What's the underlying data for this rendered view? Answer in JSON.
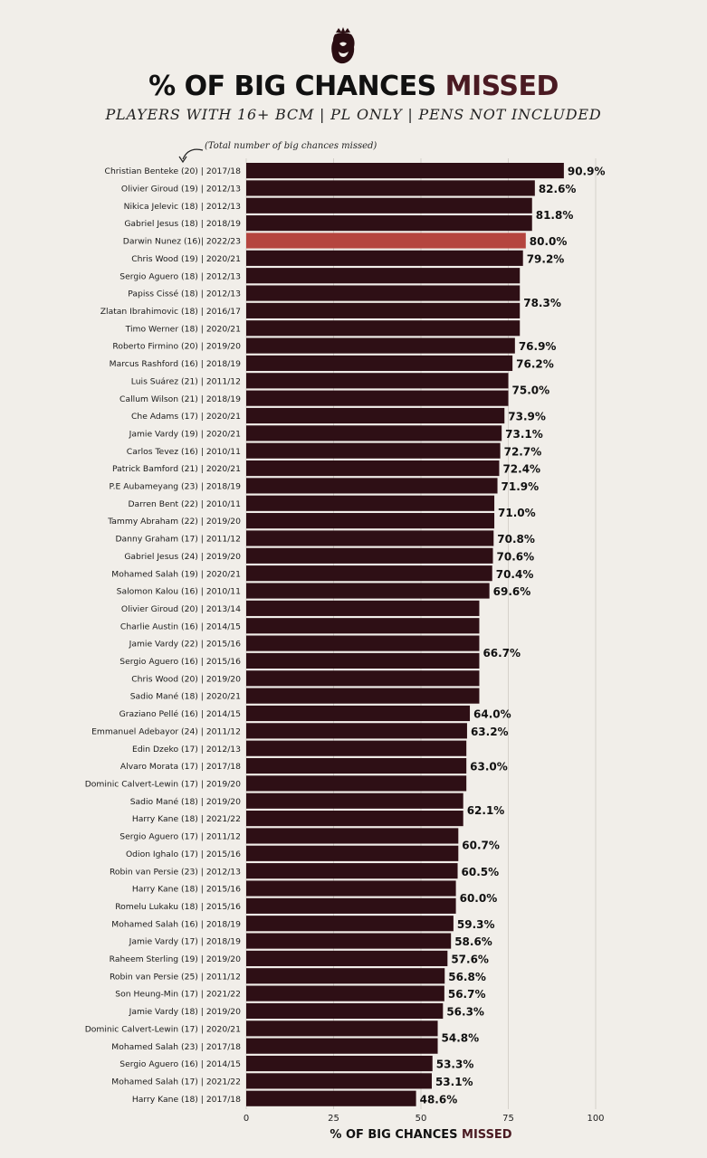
{
  "header": {
    "logo_icon": "premier-league-lion-icon",
    "title_main": "% OF BIG CHANCES ",
    "title_accent": "MISSED",
    "subtitle": "PLAYERS WITH 16+ BCM  |  PL ONLY | PENS NOT INCLUDED",
    "annotation": "(Total number of big chances missed)"
  },
  "colors": {
    "bar": "#2e0f15",
    "highlight": "#b5453f",
    "accent_text": "#4a1a22",
    "background": "#f1eee9"
  },
  "chart_data": {
    "type": "bar",
    "orientation": "horizontal",
    "xlabel_main": "% OF BIG CHANCES ",
    "xlabel_accent": "MISSED",
    "xlim": [
      0,
      100
    ],
    "xticks": [
      "0",
      "25",
      "50",
      "75",
      "100"
    ],
    "highlight_category": "Darwin Nunez (16)| 2022/23",
    "categories": [
      "Christian Benteke (20) | 2017/18",
      "Olivier Giroud (19) | 2012/13",
      "Nikica Jelevic (18) | 2012/13",
      "Gabriel Jesus (18) | 2018/19",
      "Darwin Nunez (16)| 2022/23",
      "Chris Wood (19) | 2020/21",
      "Sergio Aguero (18) | 2012/13",
      "Papiss Cissé (18) | 2012/13",
      "Zlatan Ibrahimovic (18) | 2016/17",
      "Timo Werner (18) | 2020/21",
      "Roberto Firmino (20) | 2019/20",
      "Marcus Rashford (16) | 2018/19",
      "Luis Suárez (21) | 2011/12",
      "Callum Wilson (21) | 2018/19",
      "Che Adams (17) | 2020/21",
      "Jamie Vardy (19) | 2020/21",
      "Carlos Tevez (16) | 2010/11",
      "Patrick Bamford (21) | 2020/21",
      "P.E Aubameyang (23) | 2018/19",
      "Darren Bent (22) | 2010/11",
      "Tammy Abraham (22) | 2019/20",
      "Danny Graham (17) | 2011/12",
      "Gabriel Jesus (24) | 2019/20",
      "Mohamed Salah (19) | 2020/21",
      "Salomon Kalou (16) | 2010/11",
      "Olivier Giroud (20) | 2013/14",
      "Charlie Austin (16) | 2014/15",
      "Jamie Vardy (22) | 2015/16",
      "Sergio Aguero (16) | 2015/16",
      "Chris Wood (20) | 2019/20",
      "Sadio Mané (18) | 2020/21",
      "Graziano Pellé (16) | 2014/15",
      "Emmanuel Adebayor (24) | 2011/12",
      "Edin Dzeko (17) | 2012/13",
      "Alvaro Morata (17) | 2017/18",
      "Dominic Calvert-Lewin (17) | 2019/20",
      "Sadio Mané (18) | 2019/20",
      "Harry Kane (18) | 2021/22",
      "Sergio Aguero (17) | 2011/12",
      "Odion Ighalo (17) | 2015/16",
      "Robin van Persie (23) | 2012/13",
      "Harry Kane (18) | 2015/16",
      "Romelu Lukaku (18) | 2015/16",
      "Mohamed Salah (16) | 2018/19",
      "Jamie Vardy (17) | 2018/19",
      "Raheem Sterling (19) | 2019/20",
      "Robin van Persie (25) | 2011/12",
      "Son Heung-Min (17) | 2021/22",
      "Jamie Vardy (18) | 2019/20",
      "Dominic Calvert-Lewin (17) | 2020/21",
      "Mohamed Salah (23) | 2017/18",
      "Sergio Aguero (16) | 2014/15",
      "Mohamed Salah (17) | 2021/22",
      "Harry Kane (18) | 2017/18"
    ],
    "values": [
      90.9,
      82.6,
      81.8,
      81.8,
      80.0,
      79.2,
      78.3,
      78.3,
      78.3,
      78.3,
      76.9,
      76.2,
      75.0,
      75.0,
      73.9,
      73.1,
      72.7,
      72.4,
      71.9,
      71.0,
      71.0,
      70.8,
      70.6,
      70.4,
      69.6,
      66.7,
      66.7,
      66.7,
      66.7,
      66.7,
      66.7,
      64.0,
      63.2,
      63.0,
      63.0,
      63.0,
      62.1,
      62.1,
      60.7,
      60.7,
      60.5,
      60.0,
      60.0,
      59.3,
      58.6,
      57.6,
      56.8,
      56.7,
      56.3,
      54.8,
      54.8,
      53.3,
      53.1,
      48.6
    ],
    "value_labels": [
      {
        "text": "90.9%",
        "value": 90.9,
        "from": 0,
        "to": 0
      },
      {
        "text": "82.6%",
        "value": 82.6,
        "from": 1,
        "to": 1
      },
      {
        "text": "81.8%",
        "value": 81.8,
        "from": 2,
        "to": 3
      },
      {
        "text": "80.0%",
        "value": 80.0,
        "from": 4,
        "to": 4
      },
      {
        "text": "79.2%",
        "value": 79.2,
        "from": 5,
        "to": 5
      },
      {
        "text": "78.3%",
        "value": 78.3,
        "from": 6,
        "to": 9
      },
      {
        "text": "76.9%",
        "value": 76.9,
        "from": 10,
        "to": 10
      },
      {
        "text": "76.2%",
        "value": 76.2,
        "from": 11,
        "to": 11
      },
      {
        "text": "75.0%",
        "value": 75.0,
        "from": 12,
        "to": 13
      },
      {
        "text": "73.9%",
        "value": 73.9,
        "from": 14,
        "to": 14
      },
      {
        "text": "73.1%",
        "value": 73.1,
        "from": 15,
        "to": 15
      },
      {
        "text": "72.7%",
        "value": 72.7,
        "from": 16,
        "to": 16
      },
      {
        "text": "72.4%",
        "value": 72.4,
        "from": 17,
        "to": 17
      },
      {
        "text": "71.9%",
        "value": 71.9,
        "from": 18,
        "to": 18
      },
      {
        "text": "71.0%",
        "value": 71.0,
        "from": 19,
        "to": 20
      },
      {
        "text": "70.8%",
        "value": 70.8,
        "from": 21,
        "to": 21
      },
      {
        "text": "70.6%",
        "value": 70.6,
        "from": 22,
        "to": 22
      },
      {
        "text": "70.4%",
        "value": 70.4,
        "from": 23,
        "to": 23
      },
      {
        "text": "69.6%",
        "value": 69.6,
        "from": 24,
        "to": 24
      },
      {
        "text": "66.7%",
        "value": 66.7,
        "from": 25,
        "to": 30
      },
      {
        "text": "64.0%",
        "value": 64.0,
        "from": 31,
        "to": 31
      },
      {
        "text": "63.2%",
        "value": 63.2,
        "from": 32,
        "to": 32
      },
      {
        "text": "63.0%",
        "value": 63.0,
        "from": 33,
        "to": 35
      },
      {
        "text": "62.1%",
        "value": 62.1,
        "from": 36,
        "to": 37
      },
      {
        "text": "60.7%",
        "value": 60.7,
        "from": 38,
        "to": 39
      },
      {
        "text": "60.5%",
        "value": 60.5,
        "from": 40,
        "to": 40
      },
      {
        "text": "60.0%",
        "value": 60.0,
        "from": 41,
        "to": 42
      },
      {
        "text": "59.3%",
        "value": 59.3,
        "from": 43,
        "to": 43
      },
      {
        "text": "58.6%",
        "value": 58.6,
        "from": 44,
        "to": 44
      },
      {
        "text": "57.6%",
        "value": 57.6,
        "from": 45,
        "to": 45
      },
      {
        "text": "56.8%",
        "value": 56.8,
        "from": 46,
        "to": 46
      },
      {
        "text": "56.7%",
        "value": 56.7,
        "from": 47,
        "to": 47
      },
      {
        "text": "56.3%",
        "value": 56.3,
        "from": 48,
        "to": 48
      },
      {
        "text": "54.8%",
        "value": 54.8,
        "from": 49,
        "to": 50
      },
      {
        "text": "53.3%",
        "value": 53.3,
        "from": 51,
        "to": 51
      },
      {
        "text": "53.1%",
        "value": 53.1,
        "from": 52,
        "to": 52
      },
      {
        "text": "48.6%",
        "value": 48.6,
        "from": 53,
        "to": 53
      }
    ],
    "grid": "vertical lines at x ticks"
  }
}
